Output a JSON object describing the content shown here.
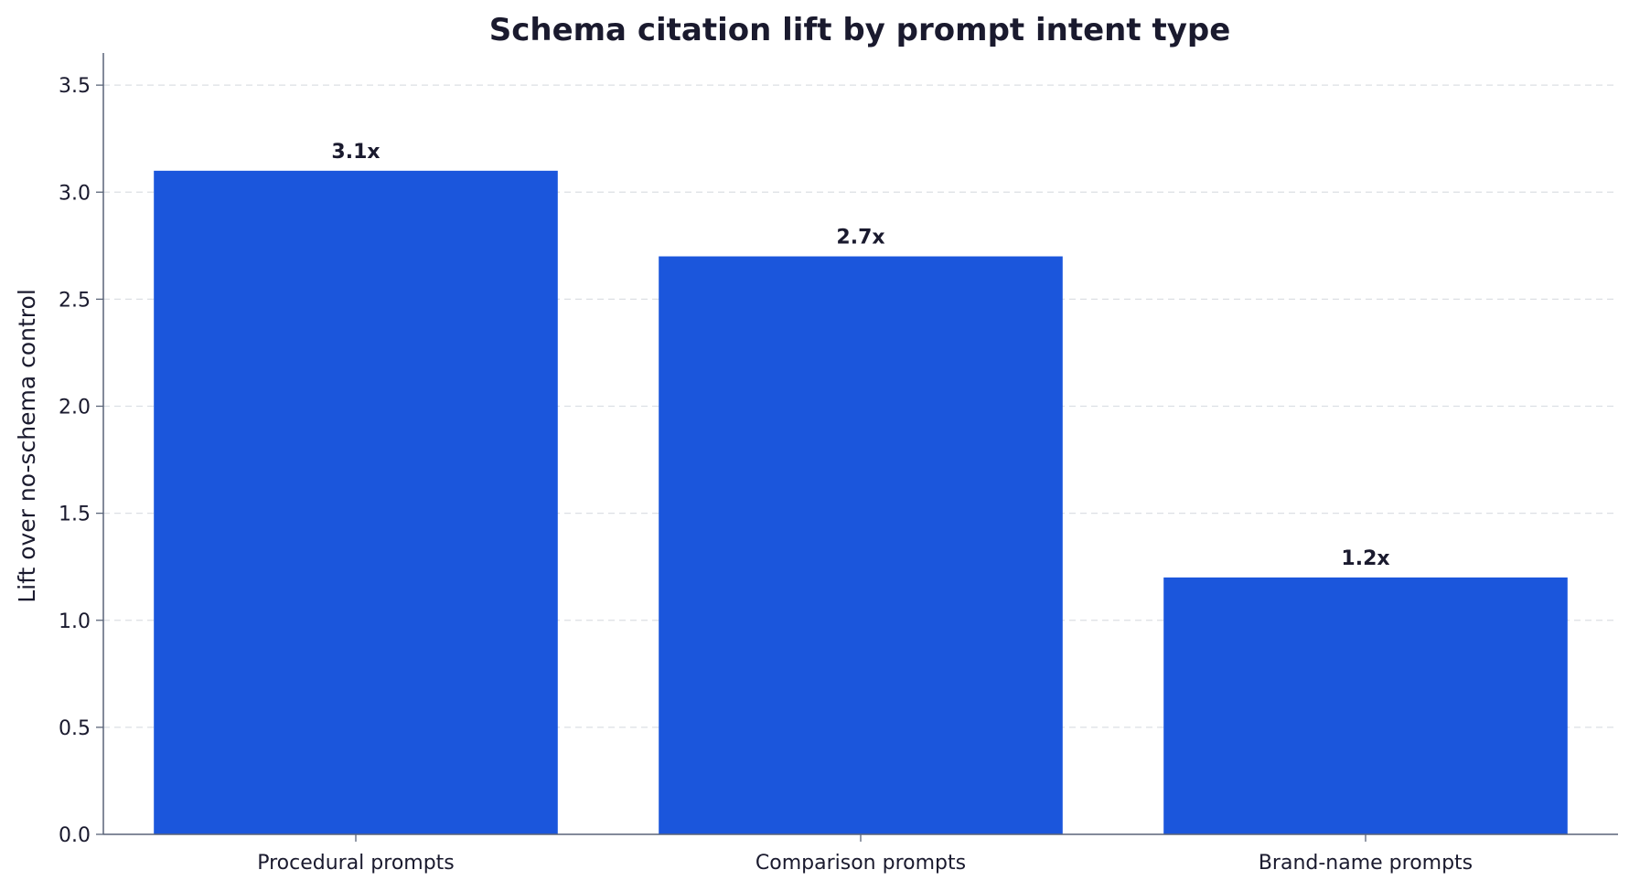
{
  "chart_data": {
    "type": "bar",
    "title": "Schema citation lift by prompt intent type",
    "xlabel": "",
    "ylabel": "Lift over no-schema control",
    "categories": [
      "Procedural prompts",
      "Comparison prompts",
      "Brand-name prompts"
    ],
    "values": [
      3.1,
      2.7,
      1.2
    ],
    "data_labels": [
      "3.1x",
      "2.7x",
      "1.2x"
    ],
    "ylim": [
      0,
      3.65
    ],
    "yticks": [
      0.0,
      0.5,
      1.0,
      1.5,
      2.0,
      2.5,
      3.0,
      3.5
    ],
    "ytick_labels": [
      "0.0",
      "0.5",
      "1.0",
      "1.5",
      "2.0",
      "2.5",
      "3.0",
      "3.5"
    ],
    "grid": "y-dashed",
    "legend": "none",
    "colors": {
      "bar": "#1b56dc",
      "text": "#1a1a2e",
      "axis": "#5a6478",
      "grid": "#dcdfe4"
    }
  }
}
